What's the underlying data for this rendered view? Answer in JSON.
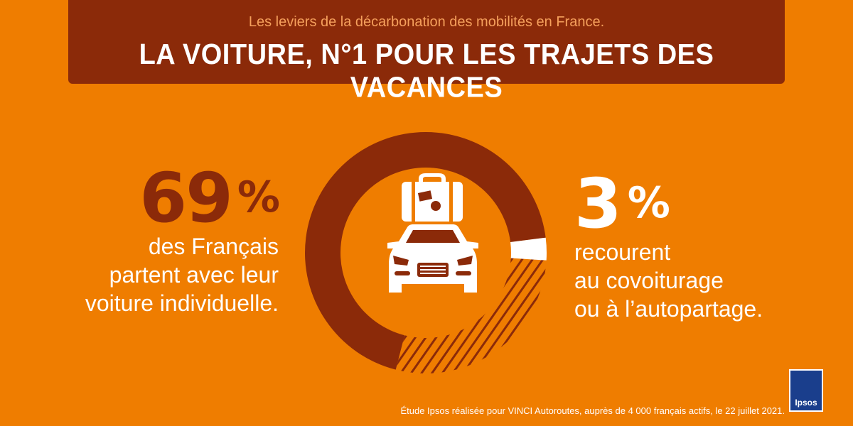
{
  "header": {
    "subtitle": "Les leviers de la décarbonation des mobilités en France.",
    "title": "LA VOITURE, N°1 POUR LES TRAJETS DES VACANCES"
  },
  "left_stat": {
    "value": "69",
    "unit": "%",
    "line1": "des Français",
    "line2": "partent avec leur",
    "line3_bold": "voiture individuelle."
  },
  "right_stat": {
    "value": "3",
    "unit": "%",
    "line1": "recourent",
    "line2_bold": "au covoiturage",
    "line3_bold": "ou à l’autopartage."
  },
  "donut": {
    "solid_fraction": 0.69,
    "white_fraction": 0.03,
    "colors": {
      "solid": "#8B2A09",
      "white": "#FFFFFF",
      "hatch": "#8B2A09",
      "background": "#EF7D00"
    }
  },
  "icons": [
    "suitcase-icon",
    "car-icon"
  ],
  "footer": {
    "source": "Étude Ipsos réalisée pour VINCI Autoroutes, auprès de 4 000 français actifs, le 22 juillet 2021."
  },
  "logo": {
    "text": "Ipsos"
  }
}
